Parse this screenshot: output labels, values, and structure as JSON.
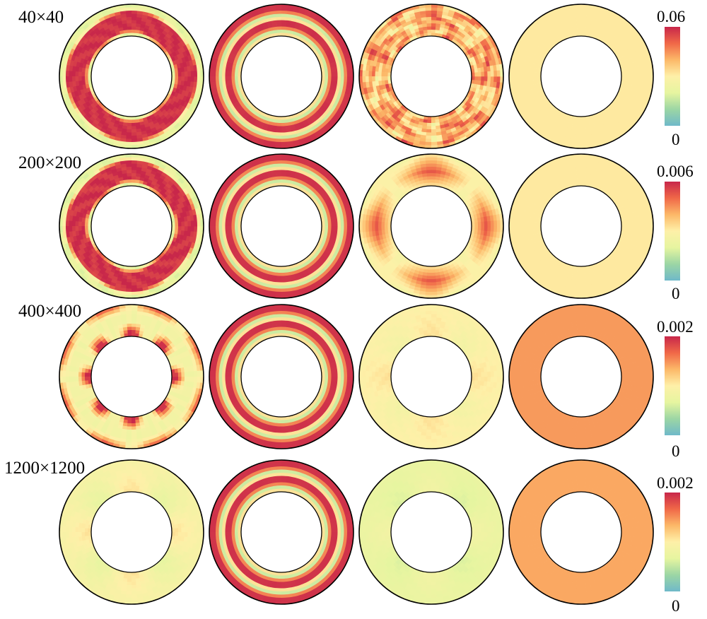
{
  "figure": {
    "rows": [
      {
        "label": "40×40",
        "colorbar": {
          "max_label": "0.06",
          "min_label": "0"
        },
        "panels": [
          {
            "pattern": "blob-ring",
            "base_level": 0.35,
            "band_level": 0.97,
            "lobes": 4,
            "perturbation": 0.45
          },
          {
            "pattern": "concentric-bands",
            "base_level": 0.97,
            "band_level": 0.28,
            "lobes": 0,
            "perturbation": 0.1
          },
          {
            "pattern": "patchy",
            "base_level": 0.45,
            "band_level": 0.88,
            "lobes": 8,
            "perturbation": 0.7
          },
          {
            "pattern": "uniform",
            "base_level": 0.52,
            "band_level": 0.52,
            "lobes": 0,
            "perturbation": 0.0
          }
        ]
      },
      {
        "label": "200×200",
        "colorbar": {
          "max_label": "0.006",
          "min_label": "0"
        },
        "panels": [
          {
            "pattern": "blob-ring",
            "base_level": 0.35,
            "band_level": 0.97,
            "lobes": 4,
            "perturbation": 0.55
          },
          {
            "pattern": "concentric-bands",
            "base_level": 0.97,
            "band_level": 0.28,
            "lobes": 0,
            "perturbation": 0.05
          },
          {
            "pattern": "petal",
            "base_level": 0.42,
            "band_level": 0.85,
            "lobes": 4,
            "perturbation": 0.4
          },
          {
            "pattern": "uniform",
            "base_level": 0.52,
            "band_level": 0.52,
            "lobes": 0,
            "perturbation": 0.0
          }
        ]
      },
      {
        "label": "400×400",
        "colorbar": {
          "max_label": "0.002",
          "min_label": "0"
        },
        "panels": [
          {
            "pattern": "flower",
            "base_level": 0.42,
            "band_level": 0.97,
            "lobes": 8,
            "perturbation": 0.5
          },
          {
            "pattern": "concentric-bands",
            "base_level": 0.97,
            "band_level": 0.28,
            "lobes": 0,
            "perturbation": 0.05
          },
          {
            "pattern": "diffuse",
            "base_level": 0.42,
            "band_level": 0.55,
            "lobes": 4,
            "perturbation": 0.25
          },
          {
            "pattern": "uniform",
            "base_level": 0.73,
            "band_level": 0.73,
            "lobes": 0,
            "perturbation": 0.0
          }
        ]
      },
      {
        "label": "1200×1200",
        "colorbar": {
          "max_label": "0.002",
          "min_label": "0"
        },
        "panels": [
          {
            "pattern": "diffuse",
            "base_level": 0.34,
            "band_level": 0.55,
            "lobes": 4,
            "perturbation": 0.25
          },
          {
            "pattern": "concentric-bands",
            "base_level": 0.97,
            "band_level": 0.28,
            "lobes": 0,
            "perturbation": 0.05
          },
          {
            "pattern": "diffuse",
            "base_level": 0.31,
            "band_level": 0.42,
            "lobes": 4,
            "perturbation": 0.15
          },
          {
            "pattern": "uniform",
            "base_level": 0.7,
            "band_level": 0.7,
            "lobes": 0,
            "perturbation": 0.0
          }
        ]
      }
    ],
    "colormap": [
      "#6fb9c9",
      "#9cd6a4",
      "#e6f5a0",
      "#fef0a8",
      "#fcb868",
      "#f06848",
      "#c8274a"
    ]
  }
}
